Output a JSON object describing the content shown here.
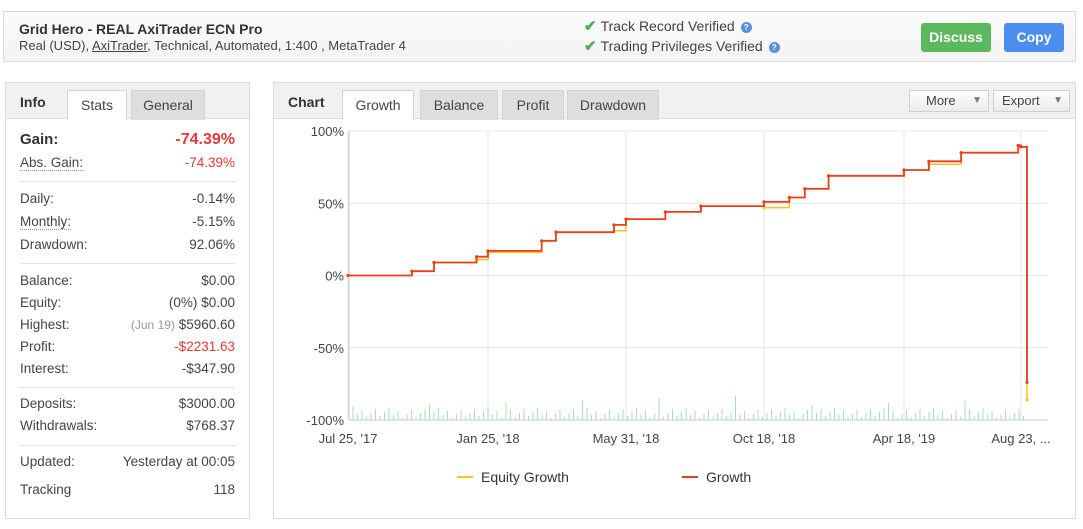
{
  "header": {
    "title": "Grid Hero - REAL AxiTrader ECN Pro",
    "sub_prefix": "Real (USD),",
    "sub_broker": "AxiTrader",
    "sub_suffix": ", Technical, Automated, 1:400 , MetaTrader 4",
    "verified1": "Track Record Verified",
    "verified2": "Trading Privileges Verified",
    "discuss": "Discuss",
    "copy": "Copy"
  },
  "info": {
    "title": "Info",
    "tabs": [
      "Stats",
      "General"
    ],
    "gain_label": "Gain:",
    "gain_value": "-74.39%",
    "abs_gain_label": "Abs. Gain:",
    "abs_gain_value": "-74.39%",
    "daily_label": "Daily:",
    "daily_value": "-0.14%",
    "monthly_label": "Monthly:",
    "monthly_value": "-5.15%",
    "drawdown_label": "Drawdown:",
    "drawdown_value": "92.06%",
    "balance_label": "Balance:",
    "balance_value": "$0.00",
    "equity_label": "Equity:",
    "equity_pct": "(0%)",
    "equity_value": "$0.00",
    "highest_label": "Highest:",
    "highest_date": "(Jun 19)",
    "highest_value": "$5960.60",
    "profit_label": "Profit:",
    "profit_value": "-$2231.63",
    "interest_label": "Interest:",
    "interest_value": "-$347.90",
    "deposits_label": "Deposits:",
    "deposits_value": "$3000.00",
    "withdrawals_label": "Withdrawals:",
    "withdrawals_value": "$768.37",
    "updated_label": "Updated:",
    "updated_value": "Yesterday at 00:05",
    "tracking_label": "Tracking",
    "tracking_value": "118"
  },
  "chart_panel": {
    "title": "Chart",
    "tabs": [
      "Growth",
      "Balance",
      "Profit",
      "Drawdown"
    ],
    "more": "More",
    "export": "Export"
  },
  "colors": {
    "growth": "#e8401c",
    "equity": "#f5c518",
    "volume": "#a8e0b0",
    "green": "#5cb85c",
    "blue": "#4a8ef0"
  },
  "chart_data": {
    "type": "line",
    "title": "",
    "xlabel": "",
    "ylabel": "",
    "ylim": [
      -100,
      100
    ],
    "y_ticks": [
      "100%",
      "50%",
      "0%",
      "-50%",
      "-100%"
    ],
    "x_ticks": [
      "Jul 25, '17",
      "Jan 25, '18",
      "May 31, '18",
      "Oct 18, '18",
      "Apr 18, '19",
      "Aug 23, ..."
    ],
    "x": [
      "Jul 25, '17",
      "Oct 17, '17",
      "Nov 15, '17",
      "Jan 10, '18",
      "Jan 25, '18",
      "Mar 15, '18",
      "Mar 28, '18",
      "May 20, '18",
      "May 31, '18",
      "Jul 10, '18",
      "Aug 15, '18",
      "Oct 18, '18",
      "Nov 20, '18",
      "Dec 10, '18",
      "Jan 10, '19",
      "Apr 18, '19",
      "May 15, '19",
      "Jun 19, '19",
      "Aug 20, '19",
      "Aug 23, '19",
      "Aug 24, '19"
    ],
    "series": [
      {
        "name": "Growth",
        "values": [
          0,
          3,
          9,
          13,
          17,
          24,
          30,
          35,
          39,
          44,
          48,
          51,
          54,
          60,
          69,
          73,
          79,
          85,
          90,
          89,
          -74
        ]
      },
      {
        "name": "Equity Growth",
        "values": [
          0,
          3,
          9,
          11,
          16,
          24,
          30,
          31,
          39,
          44,
          48,
          47,
          54,
          60,
          69,
          73,
          77,
          85,
          90,
          89,
          -86
        ]
      }
    ],
    "grid": true,
    "legend_position": "bottom"
  }
}
